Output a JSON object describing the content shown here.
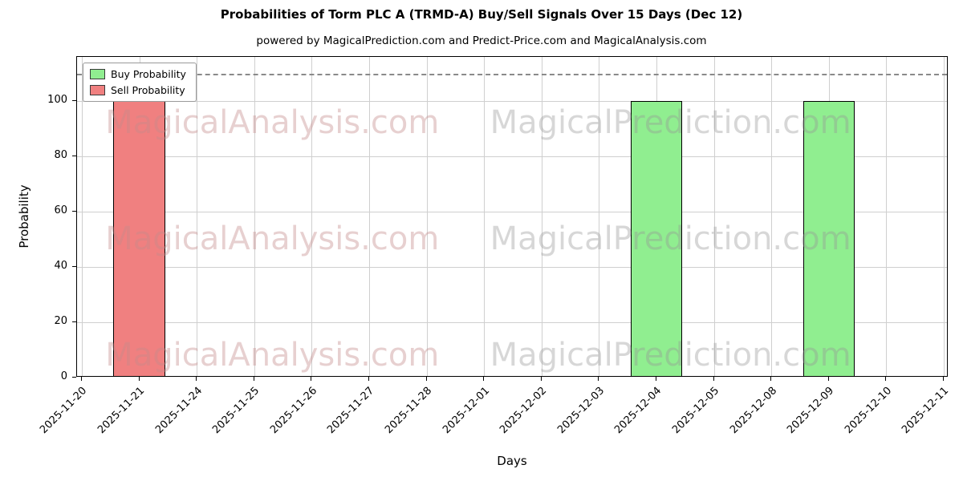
{
  "chart_data": {
    "type": "bar",
    "title": "Probabilities of Torm PLC A (TRMD-A) Buy/Sell Signals Over 15 Days (Dec 12)",
    "subtitle": "powered by MagicalPrediction.com and Predict-Price.com and MagicalAnalysis.com",
    "xlabel": "Days",
    "ylabel": "Probability",
    "ylim": [
      0,
      116
    ],
    "yticks": [
      0,
      20,
      40,
      60,
      80,
      100
    ],
    "dashed_line_y": 110,
    "grid": true,
    "legend_position": "upper left",
    "categories": [
      "2025-11-20",
      "2025-11-21",
      "2025-11-24",
      "2025-11-25",
      "2025-11-26",
      "2025-11-27",
      "2025-11-28",
      "2025-12-01",
      "2025-12-02",
      "2025-12-03",
      "2025-12-04",
      "2025-12-05",
      "2025-12-08",
      "2025-12-09",
      "2025-12-10",
      "2025-12-11"
    ],
    "series": [
      {
        "name": "Buy Probability",
        "color": "#90EE90",
        "edge_color": "#000000",
        "values": [
          0,
          0,
          0,
          0,
          0,
          0,
          0,
          0,
          0,
          0,
          100,
          0,
          0,
          100,
          0,
          0
        ]
      },
      {
        "name": "Sell Probability",
        "color": "#F08080",
        "edge_color": "#000000",
        "values": [
          0,
          100,
          0,
          0,
          0,
          0,
          0,
          0,
          0,
          0,
          0,
          0,
          0,
          0,
          0,
          0
        ]
      }
    ],
    "watermarks": [
      {
        "text": "MagicalAnalysis.com",
        "color": "rgba(196,138,138,0.40)"
      },
      {
        "text": "MagicalPrediction.com",
        "color": "rgba(150,150,150,0.38)"
      }
    ]
  }
}
